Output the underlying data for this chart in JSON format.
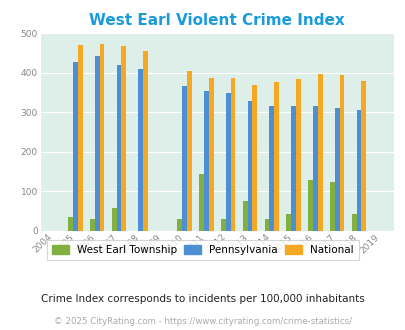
{
  "title": "West Earl Violent Crime Index",
  "title_color": "#1a9bdc",
  "years": [
    2004,
    2005,
    2006,
    2007,
    2008,
    2009,
    2010,
    2011,
    2012,
    2013,
    2014,
    2015,
    2016,
    2017,
    2018,
    2019
  ],
  "west_earl": [
    0,
    35,
    30,
    57,
    0,
    0,
    30,
    143,
    30,
    77,
    30,
    42,
    128,
    125,
    42,
    0
  ],
  "pennsylvania": [
    0,
    427,
    441,
    418,
    409,
    0,
    367,
    354,
    349,
    328,
    315,
    315,
    315,
    311,
    305,
    0
  ],
  "national": [
    0,
    470,
    473,
    467,
    455,
    0,
    405,
    387,
    387,
    368,
    377,
    383,
    396,
    394,
    380,
    0
  ],
  "west_earl_color": "#82b040",
  "pennsylvania_color": "#4d8fd4",
  "national_color": "#f5a824",
  "bg_color": "#deeee8",
  "ylim": [
    0,
    500
  ],
  "yticks": [
    0,
    100,
    200,
    300,
    400,
    500
  ],
  "subtitle": "Crime Index corresponds to incidents per 100,000 inhabitants",
  "footer": "© 2025 CityRating.com - https://www.cityrating.com/crime-statistics/",
  "legend_labels": [
    "West Earl Township",
    "Pennsylvania",
    "National"
  ],
  "bar_width": 0.22
}
